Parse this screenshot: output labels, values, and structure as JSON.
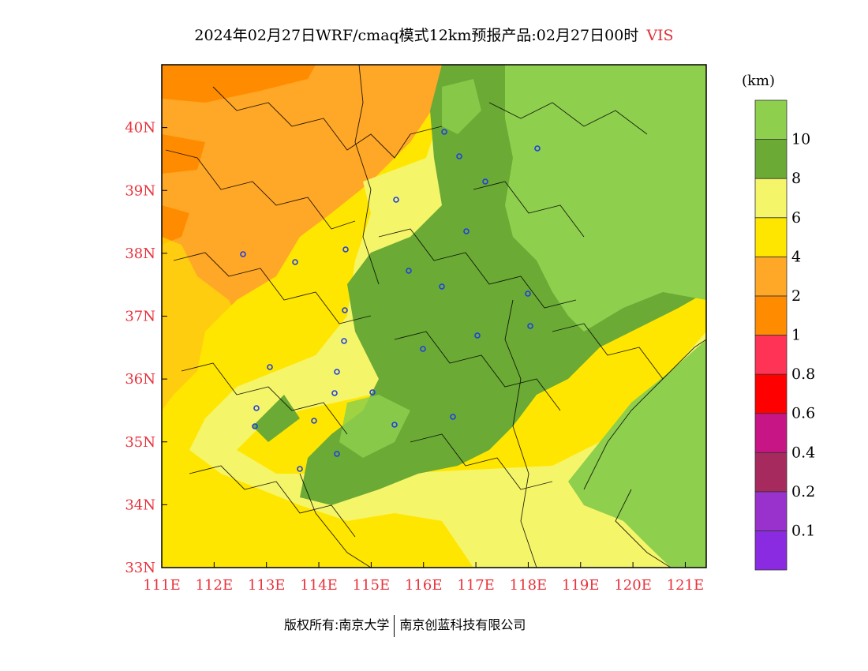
{
  "title": {
    "main": "2024年02月27日WRF/cmaq模式12km预报产品:02月27日00时",
    "variable": "VIS"
  },
  "map": {
    "lon_range": [
      111,
      121.4
    ],
    "lat_range": [
      33,
      41
    ],
    "lon_ticks": [
      "111E",
      "112E",
      "113E",
      "114E",
      "115E",
      "116E",
      "117E",
      "118E",
      "119E",
      "120E",
      "121E"
    ],
    "lat_ticks": [
      "33N",
      "34N",
      "35N",
      "36N",
      "37N",
      "38N",
      "39N",
      "40N"
    ],
    "tick_color": "#e8313b",
    "city_marker_color": "#2040e0"
  },
  "legend": {
    "unit": "(km)",
    "labels": [
      "0.1",
      "0.2",
      "0.4",
      "0.6",
      "0.8",
      "1",
      "2",
      "4",
      "6",
      "8",
      "10"
    ],
    "colors": [
      "#8a2be2",
      "#9932cc",
      "#a62a5e",
      "#c71585",
      "#ff0000",
      "#ff3355",
      "#ff8c00",
      "#ffa726",
      "#ffe600",
      "#f5f56a",
      "#6aaa35",
      "#8ecf4e"
    ]
  },
  "footer": {
    "left": "版权所有:南京大学",
    "right": "南京创蓝科技有限公司"
  }
}
